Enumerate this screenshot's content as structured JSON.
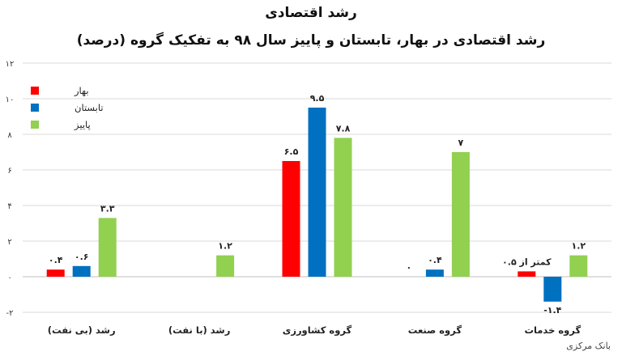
{
  "chart_data": {
    "type": "bar",
    "title": "رشد اقتصادی",
    "subtitle": "رشد اقتصادی در بهار، تابستان و پاییز سال ۹۸ به تفکیک گروه (درصد)",
    "categories": [
      "رشد (بی نفت)",
      "رشد (با نفت)",
      "گروه کشاورزی",
      "گروه صنعت",
      "گروه خدمات"
    ],
    "series": [
      {
        "name": "بهار",
        "color": "#ff0000",
        "values": [
          0.4,
          null,
          6.5,
          0,
          0.3
        ],
        "labels": [
          "۰.۴",
          "",
          "۶.۵",
          "۰",
          "کمتر از ۰.۵"
        ]
      },
      {
        "name": "تابستان",
        "color": "#0070c0",
        "values": [
          0.6,
          null,
          9.5,
          0.4,
          -1.4
        ],
        "labels": [
          "۰.۶",
          "",
          "۹.۵",
          "۰.۴",
          "-۱.۴"
        ]
      },
      {
        "name": "پاییز",
        "color": "#92d050",
        "values": [
          3.3,
          1.2,
          7.8,
          7,
          1.2
        ],
        "labels": [
          "۳.۳",
          "۱.۲",
          "۷.۸",
          "۷",
          "۱.۲"
        ]
      }
    ],
    "ylim": [
      -2,
      12
    ],
    "yticks": [
      -2,
      0,
      2,
      4,
      6,
      8,
      10,
      12
    ],
    "ytick_labels": [
      "-۲",
      "۰",
      "۲",
      "۴",
      "۶",
      "۸",
      "۱۰",
      "۱۲"
    ],
    "grid": true,
    "legend_position": "top-left",
    "source": "بانک مرکزی"
  }
}
